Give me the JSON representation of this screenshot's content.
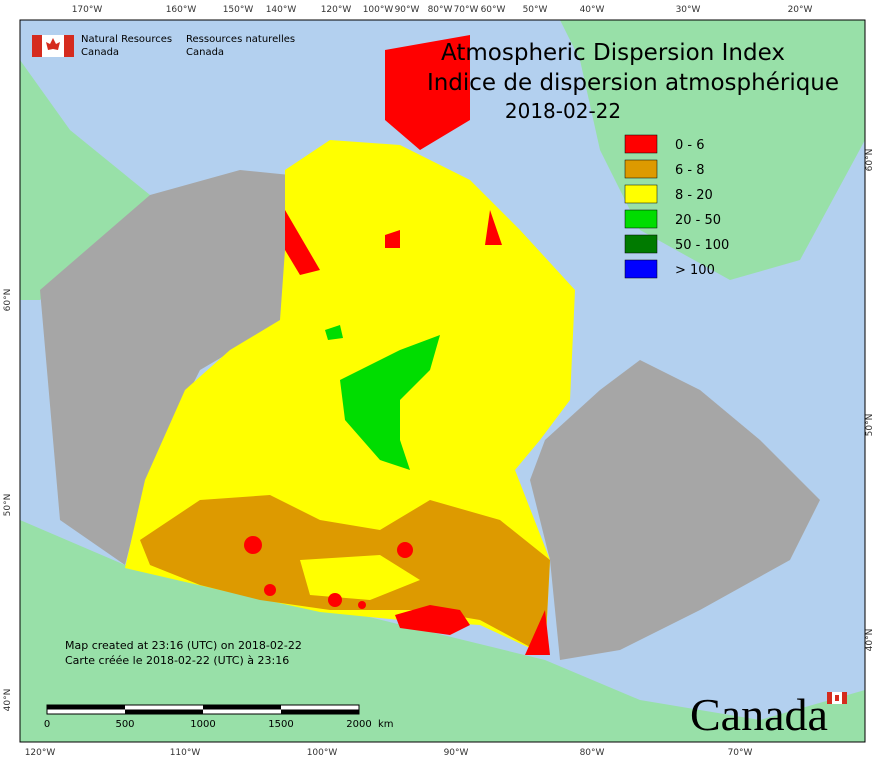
{
  "header": {
    "agency_en": [
      "Natural Resources",
      "Canada"
    ],
    "agency_fr": [
      "Ressources naturelles",
      "Canada"
    ],
    "title_en": "Atmospheric Dispersion Index",
    "title_fr": "Indice de dispersion atmosphérique",
    "date": "2018-02-22"
  },
  "legend": [
    {
      "label": "0 - 6",
      "color": "#ff0000"
    },
    {
      "label": "6 - 8",
      "color": "#dd9a00"
    },
    {
      "label": "8 - 20",
      "color": "#ffff00"
    },
    {
      "label": "20 - 50",
      "color": "#00dd00"
    },
    {
      "label": "50 - 100",
      "color": "#007a00"
    },
    {
      "label": "> 100",
      "color": "#0000ff"
    }
  ],
  "graticule": {
    "top": [
      "170°W",
      "160°W",
      "150°W",
      "140°W",
      "120°W",
      "100°W",
      "90°W",
      "80°W",
      "70°W",
      "60°W",
      "50°W",
      "40°W",
      "30°W",
      "20°W"
    ],
    "bottom": [
      "120°W",
      "110°W",
      "100°W",
      "90°W",
      "80°W",
      "70°W"
    ],
    "left": [
      "60°N",
      "50°N",
      "40°N"
    ],
    "right": [
      "60°N",
      "50°N",
      "40°N"
    ]
  },
  "scale": {
    "ticks": [
      "0",
      "500",
      "1000",
      "1500",
      "2000"
    ],
    "unit": "km"
  },
  "notes": [
    "Map created at 23:16 (UTC) on 2018-02-22",
    "Carte créée le 2018-02-22 (UTC) à 23:16"
  ],
  "wordmark": "Canada"
}
